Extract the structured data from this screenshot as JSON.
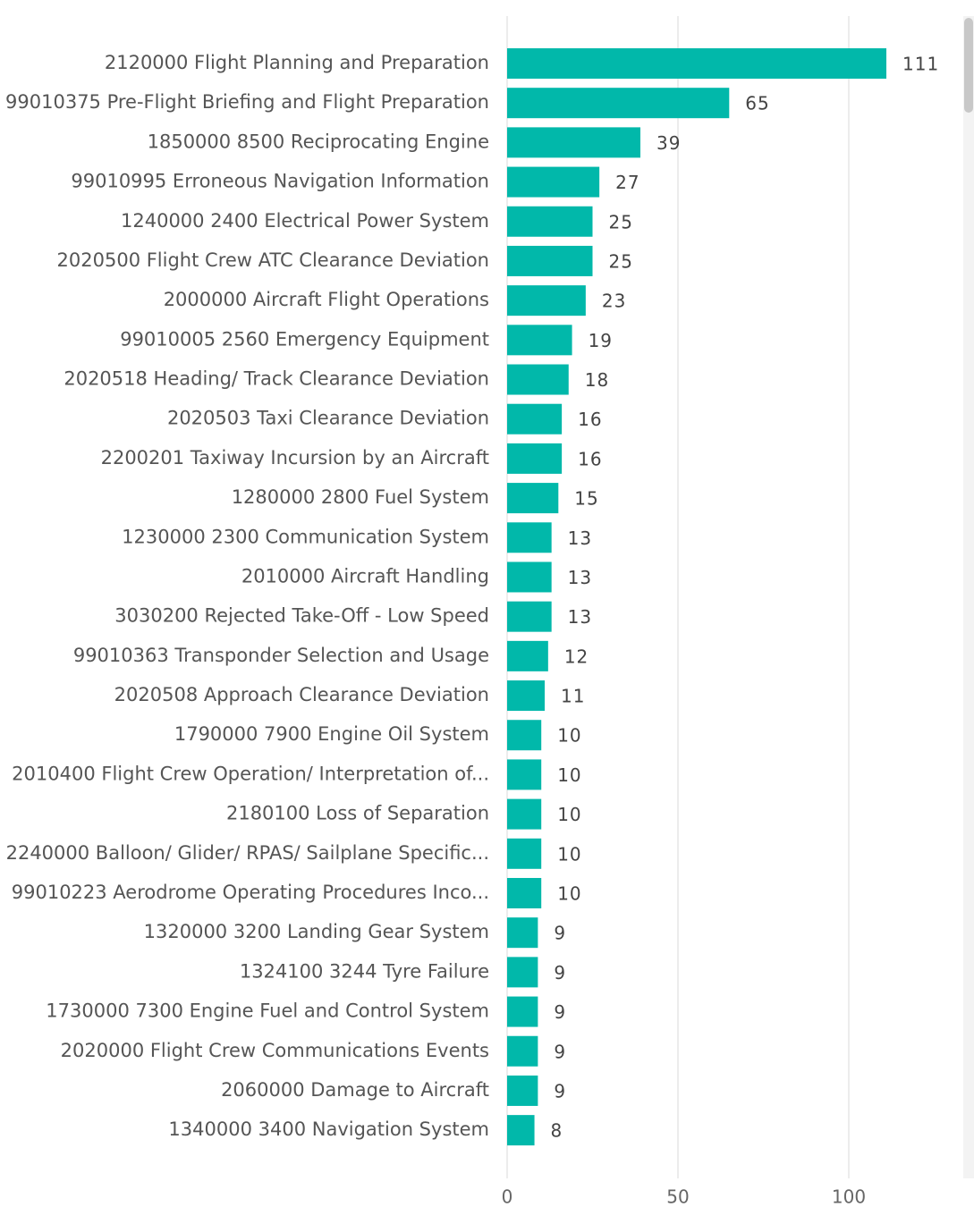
{
  "chart_data": {
    "type": "bar",
    "orientation": "horizontal",
    "categories": [
      "2120000 Flight Planning and Preparation",
      "99010375 Pre-Flight Briefing and Flight Preparation",
      "1850000 8500 Reciprocating Engine",
      "99010995 Erroneous Navigation Information",
      "1240000 2400 Electrical Power System",
      "2020500 Flight Crew ATC Clearance Deviation",
      "2000000 Aircraft Flight Operations",
      "99010005 2560 Emergency Equipment",
      "2020518 Heading/ Track Clearance Deviation",
      "2020503 Taxi Clearance Deviation",
      "2200201 Taxiway Incursion by an Aircraft",
      "1280000 2800 Fuel System",
      "1230000 2300 Communication System",
      "2010000 Aircraft Handling",
      "3030200 Rejected Take-Off - Low Speed",
      "99010363 Transponder Selection and Usage",
      "2020508 Approach Clearance Deviation",
      "1790000 7900 Engine Oil System",
      "2010400 Flight Crew Operation/ Interpretation of...",
      "2180100 Loss of Separation",
      "2240000 Balloon/ Glider/ RPAS/ Sailplane Specific...",
      "99010223 Aerodrome Operating Procedures Inco...",
      "1320000 3200 Landing Gear System",
      "1324100 3244 Tyre Failure",
      "1730000 7300 Engine Fuel and Control System",
      "2020000 Flight Crew Communications Events",
      "2060000 Damage to Aircraft",
      "1340000 3400 Navigation System"
    ],
    "values": [
      111,
      65,
      39,
      27,
      25,
      25,
      23,
      19,
      18,
      16,
      16,
      15,
      13,
      13,
      13,
      12,
      11,
      10,
      10,
      10,
      10,
      10,
      9,
      9,
      9,
      9,
      9,
      8
    ],
    "color": "#01b8aa",
    "xlim": [
      0,
      120
    ],
    "xticks": [
      0,
      50,
      100
    ],
    "grid": true
  }
}
